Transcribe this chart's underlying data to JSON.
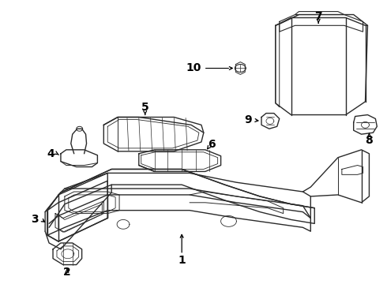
{
  "bg_color": "#ffffff",
  "line_color": "#2a2a2a",
  "label_color": "#000000",
  "label_fontsize": 10,
  "figsize": [
    4.9,
    3.6
  ],
  "dpi": 100
}
